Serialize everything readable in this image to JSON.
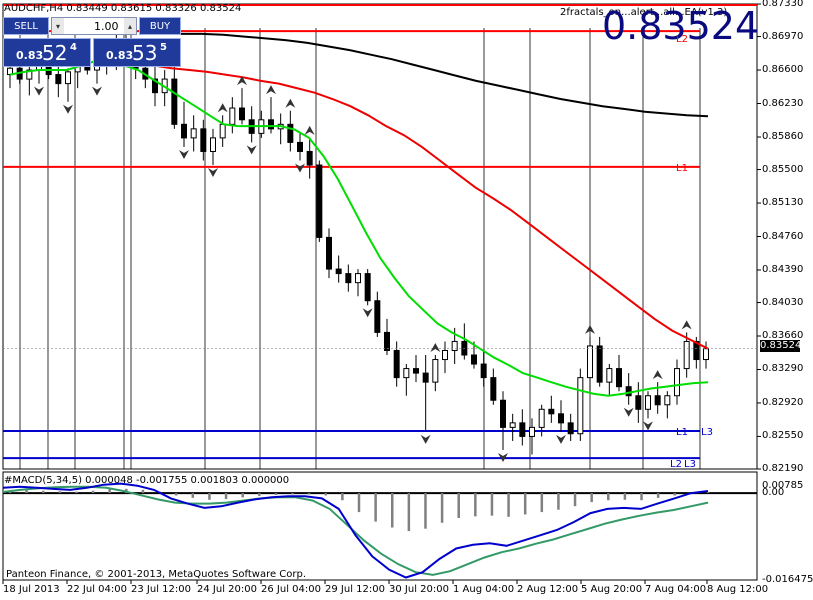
{
  "chart_header": {
    "symbol_info": "AUDCHF,H4  0.83449 0.83615 0.83326 0.83524",
    "indicator_name": "2fractals_on...alert...all...EA(v1.3)",
    "big_price": "0.83524"
  },
  "trade_panel": {
    "sell_label": "SELL",
    "buy_label": "BUY",
    "lot_value": "1.00",
    "sell_prefix": "0.83",
    "sell_big": "52",
    "sell_sup": "4",
    "buy_prefix": "0.83",
    "buy_big": "53",
    "buy_sup": "5"
  },
  "macd_header": "#MACD(5,34,5) 0.000048 -0.001755 0.001803 0.000000",
  "copyright": "Panteon Finance, © 2001-2013, MetaQuotes Software Corp.",
  "level_labels": {
    "l1_red": "L1",
    "l1_blue": "L1",
    "l3_blue": "L3",
    "l2": "L2",
    "l3": "L3",
    "l2_top": "L2"
  },
  "colors": {
    "bull": "#ffffff",
    "bear": "#000000",
    "ma_fast": "#00dd00",
    "ma_mid": "#ee0000",
    "ma_slow": "#000000",
    "level_red": "#ff0000",
    "level_blue": "#0000cc",
    "macd_main": "#0000cc",
    "macd_signal": "#339966",
    "macd_hist": "#808080"
  },
  "chart_data": [
    {
      "type": "candlestick",
      "title": "AUDCHF,H4",
      "ylim": [
        0.8219,
        0.8733
      ],
      "y_ticks": [
        "0.87330",
        "0.86970",
        "0.86600",
        "0.86230",
        "0.85860",
        "0.85500",
        "0.85130",
        "0.84760",
        "0.84390",
        "0.84030",
        "0.83660",
        "0.83290",
        "0.82920",
        "0.82550",
        "0.82190"
      ],
      "current_price_label": "0.83524",
      "current_price": 0.83524,
      "x_labels": [
        "18 Jul 2013",
        "22 Jul 04:00",
        "23 Jul 12:00",
        "24 Jul 20:00",
        "26 Jul 04:00",
        "29 Jul 12:00",
        "30 Jul 20:00",
        "1 Aug 04:00",
        "2 Aug 12:00",
        "5 Aug 20:00",
        "7 Aug 04:00",
        "8 Aug 12:00"
      ],
      "candles": [
        [
          0.8655,
          0.867,
          0.864,
          0.8662
        ],
        [
          0.8662,
          0.8675,
          0.8645,
          0.865
        ],
        [
          0.865,
          0.8668,
          0.8632,
          0.866
        ],
        [
          0.866,
          0.8672,
          0.8645,
          0.8665
        ],
        [
          0.8665,
          0.868,
          0.865,
          0.8655
        ],
        [
          0.8655,
          0.867,
          0.863,
          0.8645
        ],
        [
          0.8645,
          0.8662,
          0.8625,
          0.8658
        ],
        [
          0.8658,
          0.8675,
          0.864,
          0.8668
        ],
        [
          0.8668,
          0.8682,
          0.8655,
          0.866
        ],
        [
          0.866,
          0.8678,
          0.8645,
          0.867
        ],
        [
          0.867,
          0.869,
          0.8655,
          0.8675
        ],
        [
          0.8675,
          0.87,
          0.866,
          0.8685
        ],
        [
          0.8685,
          0.87,
          0.8665,
          0.867
        ],
        [
          0.867,
          0.8688,
          0.865,
          0.8662
        ],
        [
          0.8662,
          0.868,
          0.864,
          0.865
        ],
        [
          0.865,
          0.8665,
          0.862,
          0.8635
        ],
        [
          0.8635,
          0.866,
          0.862,
          0.865
        ],
        [
          0.865,
          0.867,
          0.8595,
          0.86
        ],
        [
          0.86,
          0.8625,
          0.8575,
          0.8585
        ],
        [
          0.8585,
          0.861,
          0.857,
          0.8595
        ],
        [
          0.8595,
          0.8605,
          0.856,
          0.857
        ],
        [
          0.857,
          0.8595,
          0.8555,
          0.8585
        ],
        [
          0.8585,
          0.861,
          0.8575,
          0.86
        ],
        [
          0.86,
          0.863,
          0.859,
          0.8618
        ],
        [
          0.8618,
          0.864,
          0.86,
          0.8605
        ],
        [
          0.8605,
          0.862,
          0.858,
          0.859
        ],
        [
          0.859,
          0.8615,
          0.8585,
          0.8605
        ],
        [
          0.8605,
          0.863,
          0.859,
          0.8595
        ],
        [
          0.8595,
          0.8612,
          0.8578,
          0.86
        ],
        [
          0.86,
          0.8615,
          0.857,
          0.858
        ],
        [
          0.858,
          0.859,
          0.856,
          0.857
        ],
        [
          0.857,
          0.8585,
          0.854,
          0.8555
        ],
        [
          0.8555,
          0.856,
          0.847,
          0.8475
        ],
        [
          0.8475,
          0.8485,
          0.843,
          0.844
        ],
        [
          0.844,
          0.8455,
          0.8425,
          0.8435
        ],
        [
          0.8435,
          0.8445,
          0.8415,
          0.8425
        ],
        [
          0.8425,
          0.844,
          0.841,
          0.8435
        ],
        [
          0.8435,
          0.844,
          0.84,
          0.8405
        ],
        [
          0.8405,
          0.8415,
          0.8365,
          0.837
        ],
        [
          0.837,
          0.8385,
          0.8345,
          0.835
        ],
        [
          0.835,
          0.836,
          0.831,
          0.832
        ],
        [
          0.832,
          0.8335,
          0.83,
          0.833
        ],
        [
          0.833,
          0.8345,
          0.8315,
          0.8325
        ],
        [
          0.8325,
          0.8345,
          0.826,
          0.8315
        ],
        [
          0.8315,
          0.8345,
          0.8305,
          0.834
        ],
        [
          0.834,
          0.836,
          0.8325,
          0.835
        ],
        [
          0.835,
          0.8375,
          0.8335,
          0.836
        ],
        [
          0.836,
          0.838,
          0.834,
          0.8345
        ],
        [
          0.8345,
          0.836,
          0.833,
          0.8335
        ],
        [
          0.8335,
          0.835,
          0.831,
          0.832
        ],
        [
          0.832,
          0.833,
          0.829,
          0.8295
        ],
        [
          0.8295,
          0.8305,
          0.824,
          0.8265
        ],
        [
          0.8265,
          0.828,
          0.825,
          0.827
        ],
        [
          0.827,
          0.8285,
          0.8245,
          0.8255
        ],
        [
          0.8255,
          0.8275,
          0.8235,
          0.8265
        ],
        [
          0.8265,
          0.829,
          0.8255,
          0.8285
        ],
        [
          0.8285,
          0.83,
          0.827,
          0.828
        ],
        [
          0.828,
          0.8295,
          0.826,
          0.827
        ],
        [
          0.827,
          0.828,
          0.825,
          0.8258
        ],
        [
          0.8258,
          0.833,
          0.825,
          0.832
        ],
        [
          0.832,
          0.8365,
          0.8305,
          0.8355
        ],
        [
          0.8355,
          0.8365,
          0.831,
          0.8315
        ],
        [
          0.8315,
          0.8335,
          0.83,
          0.833
        ],
        [
          0.833,
          0.8345,
          0.8305,
          0.831
        ],
        [
          0.831,
          0.8325,
          0.829,
          0.83
        ],
        [
          0.83,
          0.8315,
          0.827,
          0.8285
        ],
        [
          0.8285,
          0.8305,
          0.8275,
          0.83
        ],
        [
          0.83,
          0.8315,
          0.828,
          0.829
        ],
        [
          0.829,
          0.8305,
          0.8275,
          0.83
        ],
        [
          0.83,
          0.834,
          0.829,
          0.833
        ],
        [
          0.833,
          0.837,
          0.832,
          0.836
        ],
        [
          0.836,
          0.8365,
          0.833,
          0.834
        ],
        [
          0.834,
          0.836,
          0.833,
          0.8352
        ]
      ],
      "series": [
        {
          "name": "MA fast",
          "values": [
            0.8655,
            0.8658,
            0.866,
            0.866,
            0.866,
            0.8665,
            0.867,
            0.867,
            0.8665,
            0.866,
            0.865,
            0.864,
            0.863,
            0.862,
            0.861,
            0.86,
            0.8598,
            0.8598,
            0.8598,
            0.8598,
            0.8594,
            0.8585,
            0.8565,
            0.854,
            0.851,
            0.848,
            0.8452,
            0.843,
            0.841,
            0.8395,
            0.838,
            0.837,
            0.8362,
            0.8352,
            0.8342,
            0.8334,
            0.8325,
            0.832,
            0.8315,
            0.831,
            0.8306,
            0.8302,
            0.83,
            0.8302,
            0.8305,
            0.8308,
            0.831,
            0.8312,
            0.8314,
            0.8315
          ]
        },
        {
          "name": "MA mid",
          "values": [
            0.867,
            0.867,
            0.8668,
            0.8665,
            0.8662,
            0.866,
            0.8658,
            0.8655,
            0.8652,
            0.8648,
            0.8645,
            0.864,
            0.8635,
            0.8628,
            0.862,
            0.861,
            0.8598,
            0.8588,
            0.8575,
            0.856,
            0.8545,
            0.853,
            0.8518,
            0.8505,
            0.849,
            0.8475,
            0.846,
            0.8445,
            0.843,
            0.8415,
            0.84,
            0.8385,
            0.8372,
            0.8362,
            0.8352
          ]
        },
        {
          "name": "MA slow",
          "values": [
            0.87,
            0.87,
            0.87,
            0.8699,
            0.8697,
            0.8695,
            0.8693,
            0.869,
            0.8686,
            0.8682,
            0.8677,
            0.8672,
            0.8666,
            0.866,
            0.8654,
            0.8648,
            0.8643,
            0.8638,
            0.8633,
            0.8628,
            0.8624,
            0.862,
            0.8617,
            0.8614,
            0.8612,
            0.861,
            0.8609
          ]
        }
      ],
      "levels": [
        {
          "name": "L2",
          "value": 0.8703,
          "color": "#ff0000"
        },
        {
          "name": "L1",
          "value": 0.8553,
          "color": "#ff0000"
        },
        {
          "name": "L1",
          "value": 0.8261,
          "color": "#0000cc"
        },
        {
          "name": "L2",
          "value": 0.8231,
          "color": "#0000cc"
        }
      ]
    },
    {
      "type": "macd",
      "title": "#MACD(5,34,5)",
      "ylim": [
        -0.016475,
        0.004
      ],
      "y_ticks": [
        "0.00785",
        "0.00",
        "-0.016475"
      ],
      "series": [
        {
          "name": "main",
          "values": [
            0.001,
            0.0012,
            0.001,
            0.0008,
            0.0006,
            0.001,
            0.0016,
            0.0018,
            0.0014,
            0.0006,
            -0.001,
            -0.002,
            -0.0028,
            -0.0025,
            -0.0018,
            -0.0012,
            -0.0008,
            -0.0006,
            -0.0006,
            -0.001,
            -0.003,
            -0.008,
            -0.012,
            -0.0145,
            -0.016,
            -0.015,
            -0.0125,
            -0.0105,
            -0.0098,
            -0.0095,
            -0.01,
            -0.009,
            -0.008,
            -0.007,
            -0.0055,
            -0.0038,
            -0.003,
            -0.0028,
            -0.003,
            -0.002,
            -0.001,
            0.0,
            0.0004
          ]
        },
        {
          "name": "signal",
          "values": [
            0.0002,
            0.0006,
            0.0009,
            0.0011,
            0.0012,
            0.0012,
            0.001,
            0.0004,
            -0.0004,
            -0.0012,
            -0.0018,
            -0.002,
            -0.002,
            -0.0018,
            -0.0014,
            -0.001,
            -0.0008,
            -0.0008,
            -0.0014,
            -0.003,
            -0.006,
            -0.009,
            -0.0115,
            -0.0135,
            -0.015,
            -0.0155,
            -0.0148,
            -0.0135,
            -0.0122,
            -0.0112,
            -0.0105,
            -0.0096,
            -0.0088,
            -0.0078,
            -0.0068,
            -0.0058,
            -0.005,
            -0.0043,
            -0.0037,
            -0.0032,
            -0.0025,
            -0.0018
          ]
        }
      ]
    }
  ]
}
